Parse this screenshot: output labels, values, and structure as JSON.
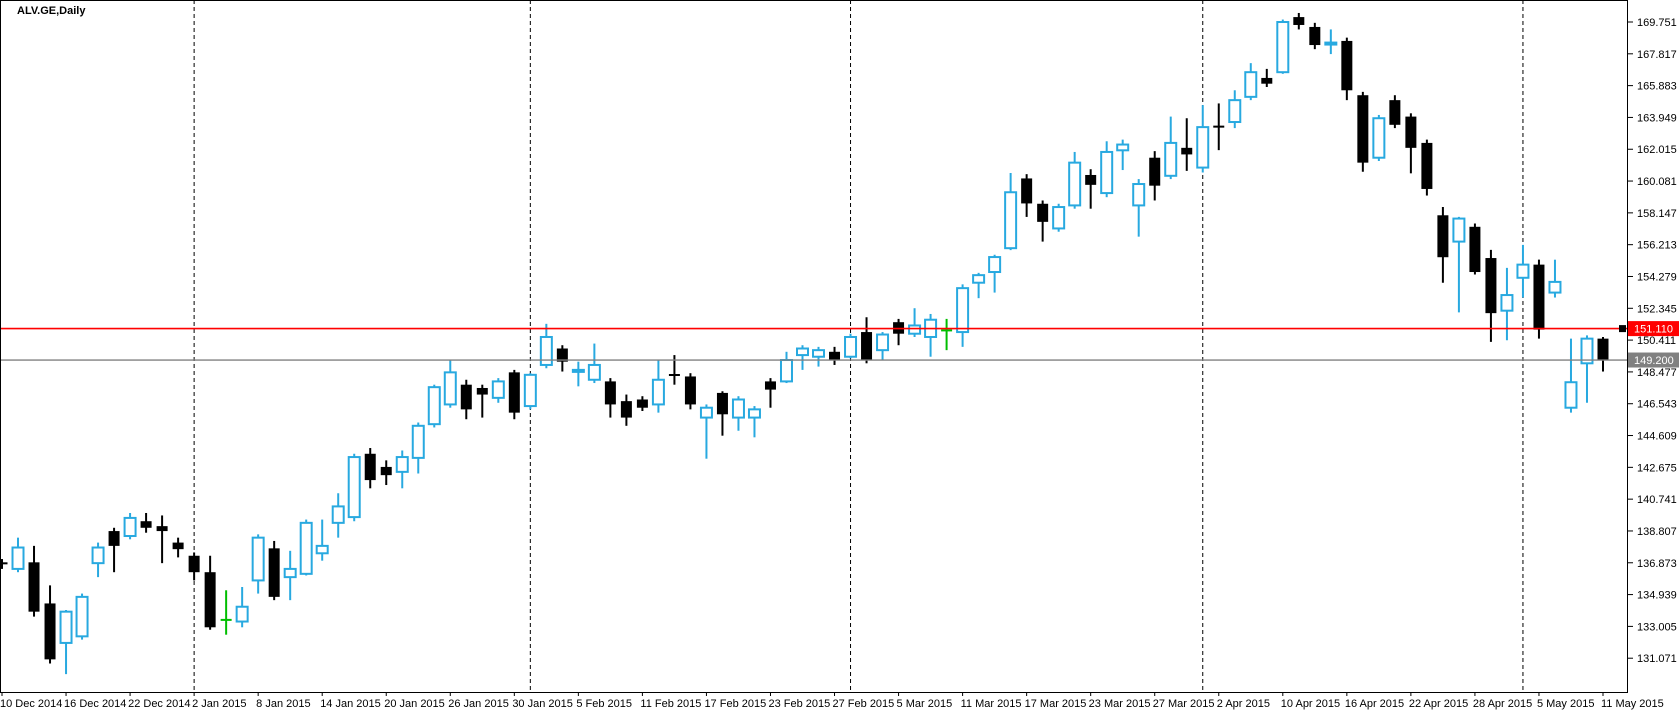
{
  "window": {
    "title": "ALV.GE,Daily"
  },
  "chart_data": {
    "type": "candlestick",
    "symbol": "ALV.GE",
    "timeframe": "Daily",
    "colors": {
      "background": "#FFFFFF",
      "border": "#000000",
      "bull": "#28A9E0",
      "bear": "#000000",
      "doji_green": "#00BE00",
      "red_line": "#FF0000",
      "gray_line": "#808080"
    },
    "y_axis": {
      "top_tick_price": 169.751,
      "tick_step": 1.934,
      "tick_labels": [
        "169.751",
        "167.817",
        "165.883",
        "163.949",
        "162.015",
        "160.081",
        "158.147",
        "156.213",
        "154.279",
        "152.345",
        "150.411",
        "148.477",
        "146.543",
        "144.609",
        "142.675",
        "140.741",
        "138.807",
        "136.873",
        "134.939",
        "133.005",
        "131.071"
      ]
    },
    "x_axis": {
      "labels": [
        {
          "b": 0,
          "t": "10 Dec 2014"
        },
        {
          "b": 4,
          "t": "16 Dec 2014"
        },
        {
          "b": 8,
          "t": "22 Dec 2014"
        },
        {
          "b": 12,
          "t": "2 Jan 2015"
        },
        {
          "b": 16,
          "t": "8 Jan 2015"
        },
        {
          "b": 20,
          "t": "14 Jan 2015"
        },
        {
          "b": 24,
          "t": "20 Jan 2015"
        },
        {
          "b": 28,
          "t": "26 Jan 2015"
        },
        {
          "b": 32,
          "t": "30 Jan 2015"
        },
        {
          "b": 36,
          "t": "5 Feb 2015"
        },
        {
          "b": 40,
          "t": "11 Feb 2015"
        },
        {
          "b": 44,
          "t": "17 Feb 2015"
        },
        {
          "b": 48,
          "t": "23 Feb 2015"
        },
        {
          "b": 52,
          "t": "27 Feb 2015"
        },
        {
          "b": 56,
          "t": "5 Mar 2015"
        },
        {
          "b": 60,
          "t": "11 Mar 2015"
        },
        {
          "b": 64,
          "t": "17 Mar 2015"
        },
        {
          "b": 68,
          "t": "23 Mar 2015"
        },
        {
          "b": 72,
          "t": "27 Mar 2015"
        },
        {
          "b": 76,
          "t": "2 Apr 2015"
        },
        {
          "b": 80,
          "t": "10 Apr 2015"
        },
        {
          "b": 84,
          "t": "16 Apr 2015"
        },
        {
          "b": 88,
          "t": "22 Apr 2015"
        },
        {
          "b": 92,
          "t": "28 Apr 2015"
        },
        {
          "b": 96,
          "t": "5 May 2015"
        },
        {
          "b": 100,
          "t": "11 May 2015"
        }
      ]
    },
    "separators_bars": [
      12,
      33,
      53,
      75,
      95
    ],
    "lines": {
      "red": {
        "price": 151.11,
        "label": "151.110",
        "color": "#FF0000",
        "has_handle": true
      },
      "gray": {
        "price": 149.2,
        "label": "149.200",
        "color": "#808080",
        "has_handle": false
      }
    },
    "doji_green_indices": [
      14,
      59
    ],
    "candles": [
      [
        136.9,
        137.1,
        136.5,
        136.8
      ],
      [
        136.5,
        138.4,
        136.3,
        137.8
      ],
      [
        136.9,
        137.9,
        133.6,
        133.9
      ],
      [
        134.4,
        135.5,
        130.75,
        131.0
      ],
      [
        132.0,
        134.0,
        130.1,
        133.9
      ],
      [
        132.4,
        135.0,
        132.2,
        134.8
      ],
      [
        136.85,
        138.1,
        136.0,
        137.8
      ],
      [
        138.8,
        139.0,
        136.3,
        137.9
      ],
      [
        138.5,
        139.9,
        138.3,
        139.6
      ],
      [
        139.4,
        139.9,
        138.7,
        139.0
      ],
      [
        139.1,
        139.75,
        136.85,
        138.8
      ],
      [
        138.1,
        138.4,
        137.2,
        137.7
      ],
      [
        137.3,
        137.5,
        135.8,
        136.3
      ],
      [
        136.3,
        137.3,
        132.8,
        132.95
      ],
      [
        133.4,
        135.2,
        132.5,
        133.4
      ],
      [
        133.3,
        135.4,
        132.95,
        134.2
      ],
      [
        135.8,
        138.6,
        135.0,
        138.4
      ],
      [
        137.75,
        138.2,
        134.6,
        134.8
      ],
      [
        136.0,
        137.6,
        134.6,
        136.5
      ],
      [
        136.2,
        139.5,
        136.1,
        139.3
      ],
      [
        137.45,
        139.5,
        137.0,
        137.9
      ],
      [
        139.3,
        141.1,
        138.4,
        140.3
      ],
      [
        139.65,
        143.5,
        139.4,
        143.3
      ],
      [
        143.5,
        143.85,
        141.4,
        141.9
      ],
      [
        142.7,
        143.1,
        141.6,
        142.2
      ],
      [
        142.4,
        143.7,
        141.4,
        143.3
      ],
      [
        143.25,
        145.4,
        142.3,
        145.2
      ],
      [
        145.3,
        147.7,
        145.1,
        147.55
      ],
      [
        146.5,
        149.2,
        146.3,
        148.45
      ],
      [
        147.7,
        148.0,
        145.6,
        146.2
      ],
      [
        147.5,
        147.7,
        145.7,
        147.1
      ],
      [
        146.9,
        148.1,
        146.6,
        147.9
      ],
      [
        148.45,
        148.6,
        145.6,
        146.0
      ],
      [
        146.4,
        148.4,
        146.2,
        148.3
      ],
      [
        148.9,
        151.4,
        148.7,
        150.6
      ],
      [
        149.9,
        150.1,
        148.5,
        149.1
      ],
      [
        148.55,
        149.1,
        147.6,
        148.6
      ],
      [
        148.0,
        150.2,
        147.8,
        148.9
      ],
      [
        147.9,
        148.1,
        145.7,
        146.5
      ],
      [
        146.7,
        147.1,
        145.2,
        145.7
      ],
      [
        146.8,
        147.0,
        146.1,
        146.3
      ],
      [
        146.5,
        149.2,
        146.0,
        148.0
      ],
      [
        148.35,
        149.5,
        147.7,
        148.3
      ],
      [
        148.2,
        148.4,
        146.2,
        146.5
      ],
      [
        145.7,
        146.5,
        143.2,
        146.3
      ],
      [
        147.2,
        147.3,
        144.6,
        145.9
      ],
      [
        145.7,
        147.0,
        144.9,
        146.8
      ],
      [
        145.7,
        146.4,
        144.5,
        146.2
      ],
      [
        147.9,
        148.1,
        146.3,
        147.4
      ],
      [
        147.9,
        149.7,
        147.8,
        149.2
      ],
      [
        149.5,
        150.1,
        148.6,
        149.9
      ],
      [
        149.4,
        150.0,
        148.8,
        149.8
      ],
      [
        149.7,
        150.0,
        148.9,
        149.2
      ],
      [
        149.4,
        150.8,
        149.3,
        150.6
      ],
      [
        150.9,
        151.8,
        149.0,
        149.2
      ],
      [
        149.8,
        150.9,
        149.2,
        150.75
      ],
      [
        151.5,
        151.7,
        150.1,
        150.8
      ],
      [
        150.8,
        152.35,
        150.6,
        151.3
      ],
      [
        150.6,
        152.0,
        149.4,
        151.65
      ],
      [
        151.0,
        151.7,
        149.8,
        151.0
      ],
      [
        150.9,
        153.8,
        150.0,
        153.57
      ],
      [
        153.9,
        154.5,
        152.96,
        154.36
      ],
      [
        154.55,
        155.6,
        153.3,
        155.46
      ],
      [
        156.0,
        160.57,
        155.88,
        159.4
      ],
      [
        160.24,
        160.5,
        157.9,
        158.72
      ],
      [
        158.7,
        158.9,
        156.4,
        157.6
      ],
      [
        157.2,
        158.7,
        157.0,
        158.5
      ],
      [
        158.6,
        161.85,
        158.4,
        161.2
      ],
      [
        160.45,
        160.8,
        158.4,
        159.85
      ],
      [
        159.35,
        162.5,
        159.1,
        161.85
      ],
      [
        161.95,
        162.6,
        160.75,
        162.3
      ],
      [
        158.6,
        160.2,
        156.7,
        159.9
      ],
      [
        161.5,
        161.9,
        158.9,
        159.8
      ],
      [
        160.4,
        164.0,
        160.2,
        162.4
      ],
      [
        162.1,
        163.9,
        160.7,
        161.7
      ],
      [
        160.9,
        164.7,
        160.6,
        163.36
      ],
      [
        163.45,
        164.8,
        161.96,
        163.35
      ],
      [
        163.67,
        165.6,
        163.3,
        165.0
      ],
      [
        165.2,
        167.25,
        165.0,
        166.7
      ],
      [
        166.35,
        166.9,
        165.8,
        166.0
      ],
      [
        166.7,
        169.9,
        166.6,
        169.75
      ],
      [
        170.05,
        170.3,
        169.3,
        169.57
      ],
      [
        169.45,
        169.7,
        168.1,
        168.35
      ],
      [
        168.4,
        169.3,
        167.8,
        168.5
      ],
      [
        168.6,
        168.8,
        165.0,
        165.6
      ],
      [
        165.3,
        165.5,
        160.65,
        161.2
      ],
      [
        161.5,
        164.1,
        161.3,
        163.9
      ],
      [
        165.0,
        165.3,
        163.3,
        163.5
      ],
      [
        164.0,
        164.2,
        160.55,
        162.1
      ],
      [
        162.4,
        162.6,
        159.2,
        159.6
      ],
      [
        158.0,
        158.5,
        153.9,
        155.45
      ],
      [
        156.4,
        157.9,
        152.1,
        157.8
      ],
      [
        157.3,
        157.5,
        154.4,
        154.55
      ],
      [
        155.4,
        155.9,
        150.3,
        152.05
      ],
      [
        152.2,
        154.8,
        150.4,
        153.15
      ],
      [
        154.2,
        156.2,
        153.0,
        155.0
      ],
      [
        155.0,
        155.3,
        150.5,
        151.05
      ],
      [
        153.3,
        155.3,
        153.0,
        153.95
      ],
      [
        146.3,
        150.5,
        146.0,
        147.85
      ],
      [
        149.0,
        150.7,
        146.6,
        150.5
      ],
      [
        150.5,
        150.6,
        148.5,
        149.2
      ]
    ]
  }
}
